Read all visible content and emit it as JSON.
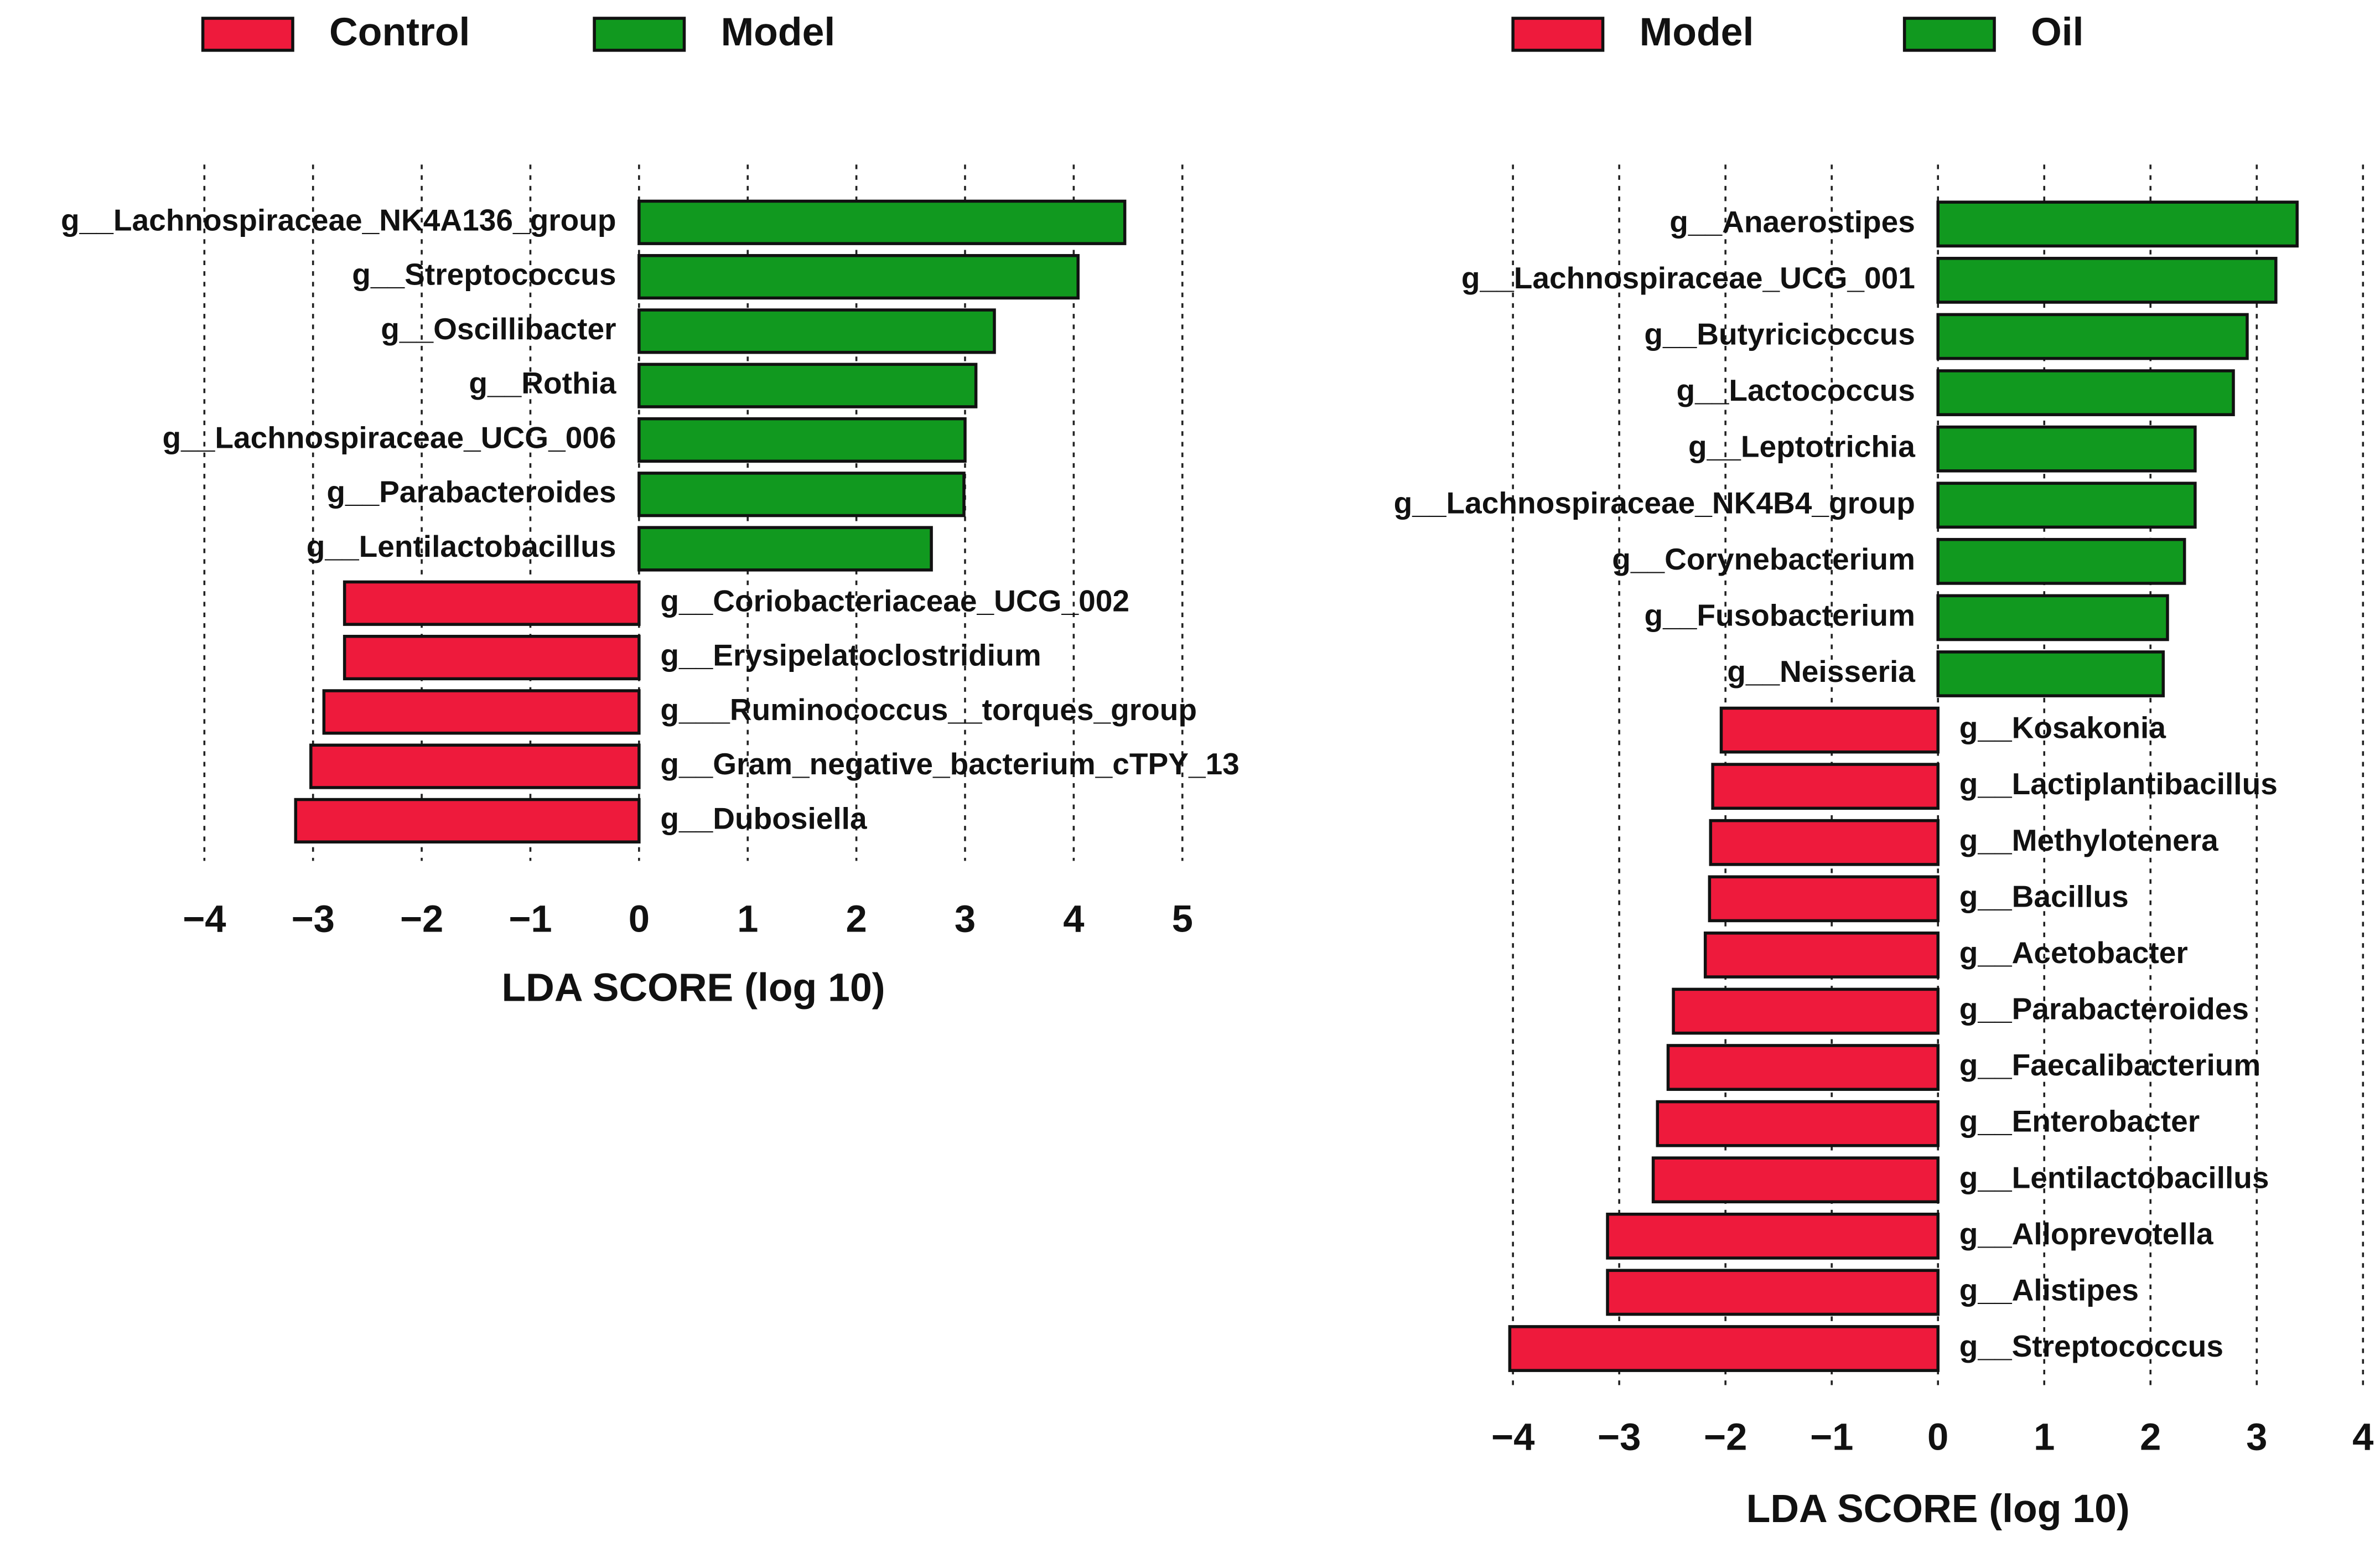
{
  "chart_data": [
    {
      "type": "bar",
      "orientation": "horizontal",
      "xlabel": "LDA SCORE (log 10)",
      "categories": [
        "g__Lachnospiraceae_NK4A136_group",
        "g__Streptococcus",
        "g__Oscillibacter",
        "g__Rothia",
        "g__Lachnospiraceae_UCG_006",
        "g__Parabacteroides",
        "g__Lentilactobacillus",
        "g__Coriobacteriaceae_UCG_002",
        "g__Erysipelatoclostridium",
        "g___Ruminococcus__torques_group",
        "g__Gram_negative_bacterium_cTPY_13",
        "g__Dubosiella"
      ],
      "series": [
        {
          "name": "Control",
          "color": "#ee1a3c",
          "values": [
            null,
            null,
            null,
            null,
            null,
            null,
            null,
            -2.71,
            -2.71,
            -2.9,
            -3.02,
            -3.16
          ]
        },
        {
          "name": "Model",
          "color": "#11991f",
          "values": [
            4.47,
            4.04,
            3.27,
            3.1,
            3.0,
            2.99,
            2.69,
            null,
            null,
            null,
            null,
            null
          ]
        }
      ],
      "xlim": [
        -4,
        5
      ],
      "xticks": [
        {
          "value": -4,
          "label": "−4"
        },
        {
          "value": -3,
          "label": "−3"
        },
        {
          "value": -2,
          "label": "−2"
        },
        {
          "value": -1,
          "label": "−1"
        },
        0,
        1,
        2,
        3,
        4,
        5
      ],
      "grid": true
    },
    {
      "type": "bar",
      "orientation": "horizontal",
      "xlabel": "LDA SCORE (log 10)",
      "categories": [
        "g__Anaerostipes",
        "g__Lachnospiraceae_UCG_001",
        "g__Butyricicoccus",
        "g__Lactococcus",
        "g__Leptotrichia",
        "g__Lachnospiraceae_NK4B4_group",
        "g__Corynebacterium",
        "g__Fusobacterium",
        "g__Neisseria",
        "g__Kosakonia",
        "g__Lactiplantibacillus",
        "g__Methylotenera",
        "g__Bacillus",
        "g__Acetobacter",
        "g__Parabacteroides",
        "g__Faecalibacterium",
        "g__Enterobacter",
        "g__Lentilactobacillus",
        "g__Alloprevotella",
        "g__Alistipes",
        "g__Streptococcus"
      ],
      "series": [
        {
          "name": "Model",
          "color": "#ee1a3c",
          "values": [
            null,
            null,
            null,
            null,
            null,
            null,
            null,
            null,
            null,
            -2.04,
            -2.12,
            -2.14,
            -2.15,
            -2.19,
            -2.49,
            -2.54,
            -2.64,
            -2.68,
            -3.11,
            -3.11,
            -4.03
          ]
        },
        {
          "name": "Oil",
          "color": "#11991f",
          "values": [
            3.38,
            3.18,
            2.91,
            2.78,
            2.42,
            2.42,
            2.32,
            2.16,
            2.12,
            null,
            null,
            null,
            null,
            null,
            null,
            null,
            null,
            null,
            null,
            null,
            null
          ]
        }
      ],
      "xlim": [
        -4,
        4
      ],
      "xticks": [
        {
          "value": -4,
          "label": "−4"
        },
        {
          "value": -3,
          "label": "−3"
        },
        {
          "value": -2,
          "label": "−2"
        },
        {
          "value": -1,
          "label": "−1"
        },
        0,
        1,
        2,
        3,
        4
      ],
      "grid": true
    }
  ]
}
